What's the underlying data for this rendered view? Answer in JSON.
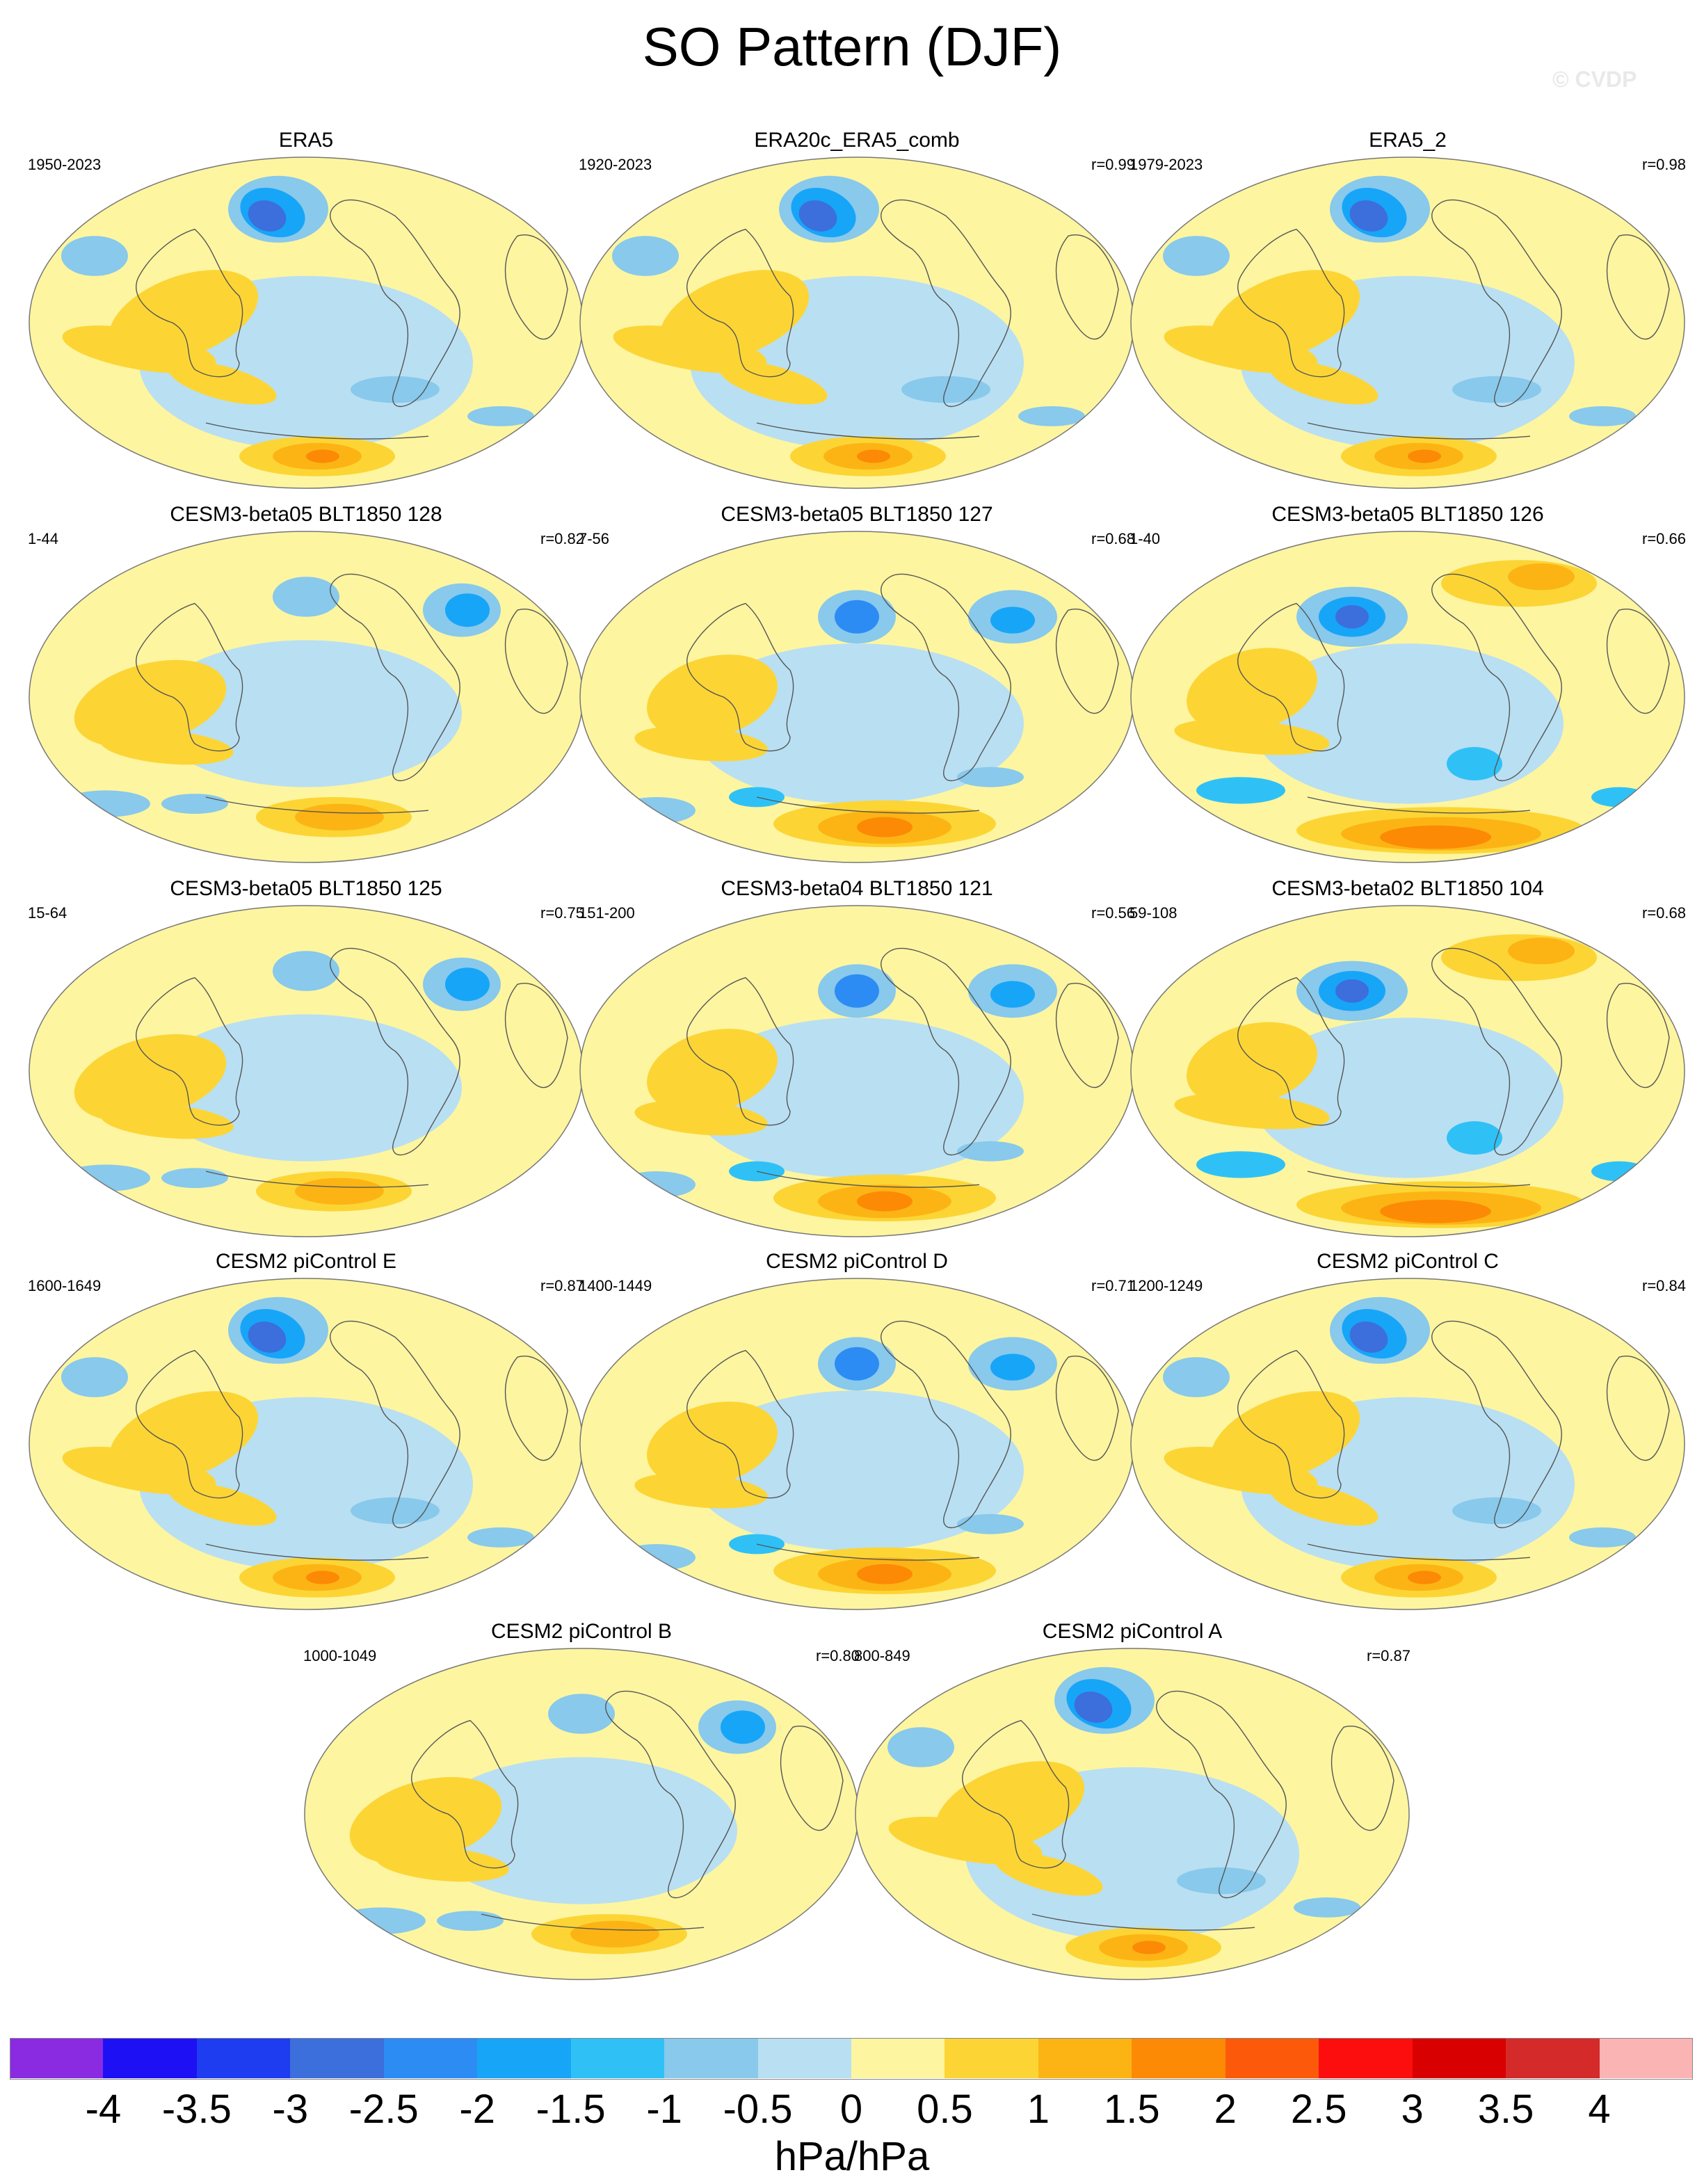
{
  "title": "SO Pattern (DJF)",
  "copyright": "© CVDP",
  "panels": [
    {
      "title": "ERA5",
      "years": "1950-2023",
      "r": "",
      "pattern": "obs"
    },
    {
      "title": "ERA20c_ERA5_comb",
      "years": "1920-2023",
      "r": "r=0.99",
      "pattern": "obs"
    },
    {
      "title": "ERA5_2",
      "years": "1979-2023",
      "r": "r=0.98",
      "pattern": "obs"
    },
    {
      "title": "CESM3-beta05 BLT1850 128",
      "years": "1-44",
      "r": "r=0.82",
      "pattern": "m1"
    },
    {
      "title": "CESM3-beta05 BLT1850 127",
      "years": "7-56",
      "r": "r=0.68",
      "pattern": "m2"
    },
    {
      "title": "CESM3-beta05 BLT1850 126",
      "years": "1-40",
      "r": "r=0.66",
      "pattern": "m3"
    },
    {
      "title": "CESM3-beta05 BLT1850 125",
      "years": "15-64",
      "r": "r=0.75",
      "pattern": "m1"
    },
    {
      "title": "CESM3-beta04 BLT1850 121",
      "years": "151-200",
      "r": "r=0.56",
      "pattern": "m2"
    },
    {
      "title": "CESM3-beta02 BLT1850 104",
      "years": "59-108",
      "r": "r=0.68",
      "pattern": "m3"
    },
    {
      "title": "CESM2 piControl E",
      "years": "1600-1649",
      "r": "r=0.87",
      "pattern": "obs"
    },
    {
      "title": "CESM2 piControl D",
      "years": "1400-1449",
      "r": "r=0.71",
      "pattern": "m2"
    },
    {
      "title": "CESM2 piControl C",
      "years": "1200-1249",
      "r": "r=0.84",
      "pattern": "obs"
    },
    {
      "title": "CESM2 piControl B",
      "years": "1000-1049",
      "r": "r=0.80",
      "pattern": "m1"
    },
    {
      "title": "CESM2 piControl A",
      "years": "800-849",
      "r": "r=0.87",
      "pattern": "obs"
    }
  ],
  "colorbar": {
    "colors": [
      "#8a2be2",
      "#1e10f5",
      "#1e3cf0",
      "#3c6edc",
      "#2c8cf4",
      "#17a5f8",
      "#2fc1f6",
      "#88c9ec",
      "#b9dff2",
      "#fdf5a0",
      "#fcd535",
      "#fcb414",
      "#fc8a05",
      "#fc5a0a",
      "#fc0e0e",
      "#d80000",
      "#d42a2a",
      "#fbb4b4"
    ],
    "labels": [
      "-4",
      "-3.5",
      "-3",
      "-2.5",
      "-2",
      "-1.5",
      "-1",
      "-0.5",
      "0",
      "0.5",
      "1",
      "1.5",
      "2",
      "2.5",
      "3",
      "3.5",
      "4"
    ],
    "units": "hPa/hPa"
  }
}
